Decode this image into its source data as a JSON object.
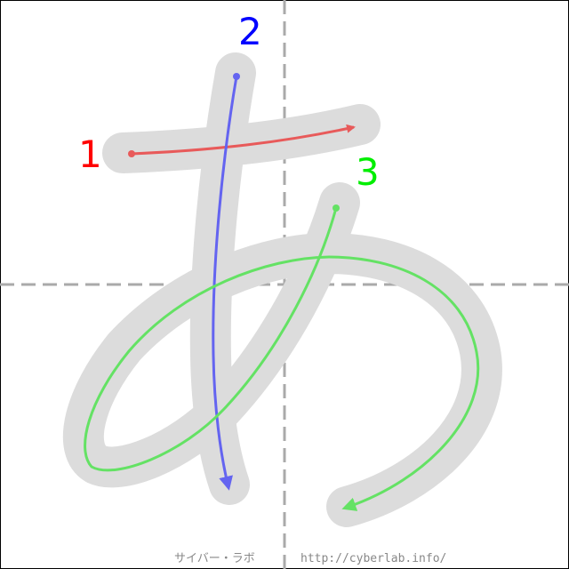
{
  "diagram": {
    "character": "あ",
    "stroke_numbers": [
      "1",
      "2",
      "3"
    ],
    "colors": {
      "stroke_1": "#e85a5a",
      "stroke_2": "#6464f0",
      "stroke_3": "#64e264",
      "guide": "#aaaaaa",
      "ghost": "#dcdcdc",
      "border": "#000000"
    }
  },
  "footer": {
    "site_name": "サイバー・ラボ",
    "url": "http://cyberlab.info/"
  }
}
